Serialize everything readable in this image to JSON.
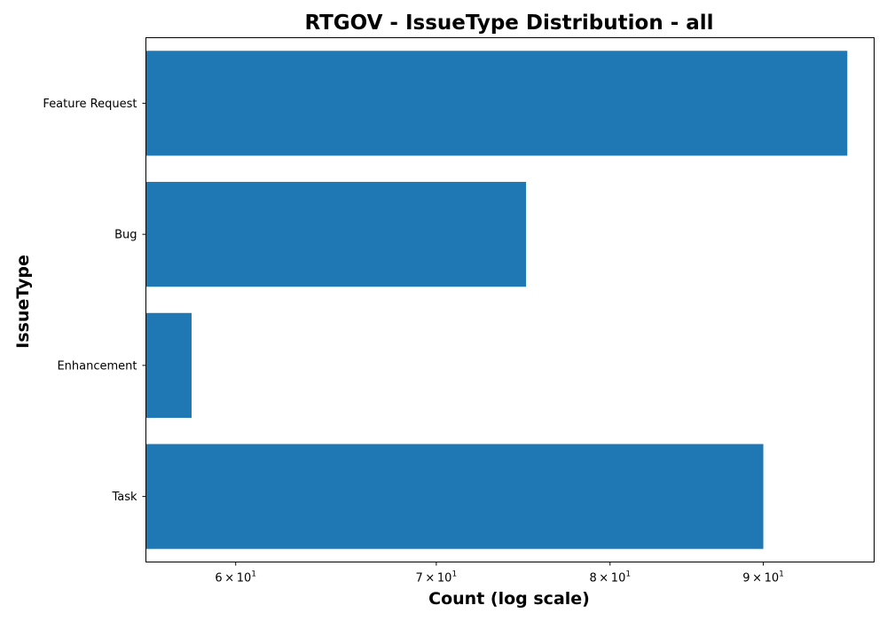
{
  "chart_data": {
    "type": "bar",
    "orientation": "horizontal",
    "title": "RTGOV - IssueType Distribution - all",
    "xlabel": "Count (log scale)",
    "ylabel": "IssueType",
    "x_scale": "log",
    "xlim": [
      56,
      98
    ],
    "categories": [
      "Feature Request",
      "Bug",
      "Enhancement",
      "Task"
    ],
    "values": [
      96,
      75,
      58,
      90
    ],
    "bar_color": "#1f77b4",
    "x_ticks": [
      {
        "value": 60,
        "mantissa": "6",
        "times": "×",
        "base": "10",
        "exponent": "1"
      },
      {
        "value": 70,
        "mantissa": "7",
        "times": "×",
        "base": "10",
        "exponent": "1"
      },
      {
        "value": 80,
        "mantissa": "8",
        "times": "×",
        "base": "10",
        "exponent": "1"
      },
      {
        "value": 90,
        "mantissa": "9",
        "times": "×",
        "base": "10",
        "exponent": "1"
      }
    ],
    "grid": false,
    "legend": "none"
  }
}
